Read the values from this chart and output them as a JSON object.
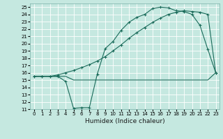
{
  "title": "",
  "xlabel": "Humidex (Indice chaleur)",
  "ylabel": "",
  "bg_color": "#c5e8e0",
  "grid_color": "#aed8d0",
  "line_color": "#1a6b5a",
  "xlim": [
    -0.5,
    23.5
  ],
  "ylim": [
    11,
    25.5
  ],
  "xticks": [
    0,
    1,
    2,
    3,
    4,
    5,
    6,
    7,
    8,
    9,
    10,
    11,
    12,
    13,
    14,
    15,
    16,
    17,
    18,
    19,
    20,
    21,
    22,
    23
  ],
  "yticks": [
    11,
    12,
    13,
    14,
    15,
    16,
    17,
    18,
    19,
    20,
    21,
    22,
    23,
    24,
    25
  ],
  "line1_x": [
    0,
    1,
    2,
    3,
    4,
    5,
    6,
    7,
    8,
    9,
    10,
    11,
    12,
    13,
    14,
    15,
    16,
    17,
    18,
    19,
    20,
    21,
    22,
    23
  ],
  "line1_y": [
    15.5,
    15.5,
    15.5,
    15.5,
    14.8,
    11.1,
    11.2,
    11.2,
    15.8,
    19.3,
    20.3,
    21.8,
    22.9,
    23.6,
    24.0,
    24.8,
    25.0,
    24.9,
    24.5,
    24.4,
    24.0,
    22.5,
    19.2,
    16.0
  ],
  "line2_x": [
    0,
    1,
    2,
    3,
    4,
    5,
    6,
    7,
    8,
    9,
    10,
    11,
    12,
    13,
    14,
    15,
    16,
    17,
    18,
    19,
    20,
    21,
    22,
    23
  ],
  "line2_y": [
    15.5,
    15.5,
    15.5,
    15.7,
    16.0,
    16.3,
    16.7,
    17.1,
    17.6,
    18.2,
    19.0,
    19.8,
    20.7,
    21.5,
    22.2,
    22.9,
    23.5,
    24.0,
    24.3,
    24.5,
    24.4,
    24.3,
    24.0,
    16.0
  ],
  "line3_x": [
    0,
    1,
    2,
    3,
    4,
    5,
    6,
    7,
    8,
    9,
    10,
    11,
    12,
    13,
    14,
    15,
    16,
    17,
    18,
    19,
    20,
    21,
    22,
    23
  ],
  "line3_y": [
    15.5,
    15.5,
    15.5,
    15.5,
    15.5,
    15.0,
    15.0,
    15.0,
    15.0,
    15.0,
    15.0,
    15.0,
    15.0,
    15.0,
    15.0,
    15.0,
    15.0,
    15.0,
    15.0,
    15.0,
    15.0,
    15.0,
    15.0,
    16.0
  ]
}
